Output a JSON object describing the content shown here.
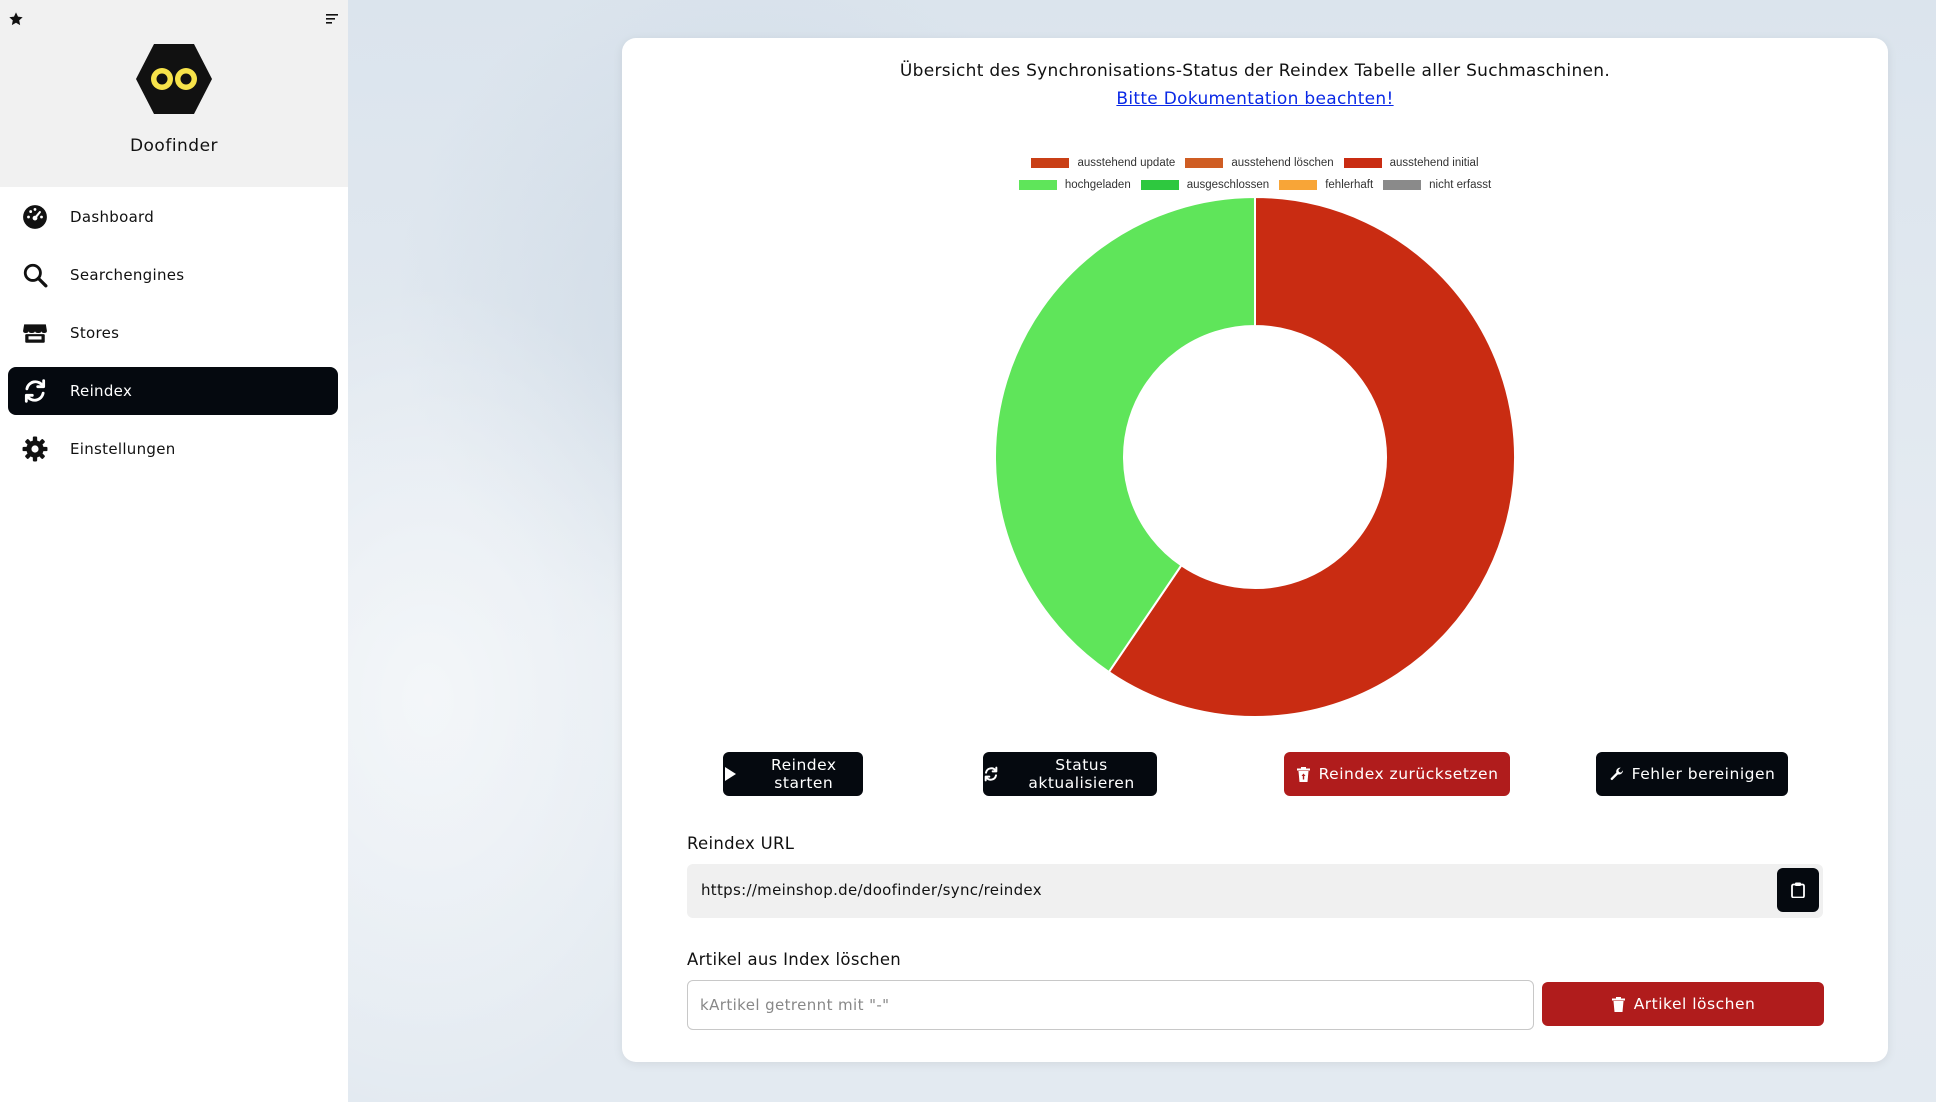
{
  "sidebar": {
    "brand": "Doofinder",
    "items": [
      {
        "label": "Dashboard",
        "icon": "dashboard-icon"
      },
      {
        "label": "Searchengines",
        "icon": "search-icon"
      },
      {
        "label": "Stores",
        "icon": "store-icon"
      },
      {
        "label": "Reindex",
        "icon": "refresh-icon",
        "active": true
      },
      {
        "label": "Einstellungen",
        "icon": "gear-icon"
      }
    ]
  },
  "main": {
    "title": "Übersicht des Synchronisations-Status der Reindex Tabelle aller Suchmaschinen.",
    "doc_link": "Bitte Dokumentation beachten!",
    "buttons": {
      "start": "Reindex starten",
      "refresh": "Status aktualisieren",
      "reset": "Reindex zurücksetzen",
      "fix": "Fehler bereinigen"
    },
    "reindex_url_label": "Reindex URL",
    "reindex_url": "https://meinshop.de/doofinder/sync/reindex",
    "delete_label": "Artikel aus Index löschen",
    "delete_placeholder": "kArtikel getrennt mit \"-\"",
    "delete_button": "Artikel löschen"
  },
  "chart_data": {
    "type": "pie",
    "variant": "doughnut",
    "title": "",
    "legend_position": "top",
    "categories": [
      "ausstehend update",
      "ausstehend löschen",
      "ausstehend initial",
      "hochgeladen",
      "ausgeschlossen",
      "fehlerhaft",
      "nicht erfasst"
    ],
    "colors": [
      "#c93f16",
      "#cf5d23",
      "#c92c12",
      "#5fe55a",
      "#2ec83f",
      "#f8a537",
      "#8a8a8a"
    ],
    "values": [
      0,
      0,
      59.5,
      40.5,
      0,
      0,
      0
    ]
  }
}
